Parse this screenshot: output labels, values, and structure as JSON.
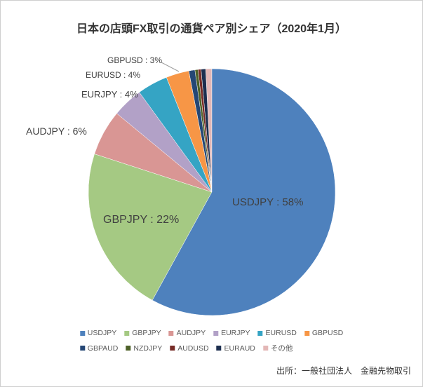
{
  "title": "日本の店頭FX取引の通貨ペア別シェア（2020年1月）",
  "source": "出所：一般社団法人　金融先物取引",
  "chart_data": {
    "type": "pie",
    "title": "日本の店頭FX取引の通貨ペア別シェア（2020年1月）",
    "start_angle_deg": 0,
    "direction": "clockwise",
    "legend_position": "bottom",
    "slices": [
      {
        "label": "USDJPY",
        "value": 58,
        "color": "#4E81BD",
        "data_label": "USDJPY : 58%",
        "label_pos": "inside"
      },
      {
        "label": "GBPJPY",
        "value": 22,
        "color": "#A5C983",
        "data_label": "GBPJPY : 22%",
        "label_pos": "inside"
      },
      {
        "label": "AUDJPY",
        "value": 6,
        "color": "#D99694",
        "data_label": "AUDJPY : 6%",
        "label_pos": "outside"
      },
      {
        "label": "EURJPY",
        "value": 4,
        "color": "#B2A1C7",
        "data_label": "EURJPY : 4%",
        "label_pos": "outside"
      },
      {
        "label": "EURUSD",
        "value": 4,
        "color": "#35A4C4",
        "data_label": "EURUSD : 4%",
        "label_pos": "outside"
      },
      {
        "label": "GBPUSD",
        "value": 3,
        "color": "#F79646",
        "data_label": "GBPUSD : 3%",
        "label_pos": "outside-leader"
      },
      {
        "label": "GBPAUD",
        "value": 0.8,
        "color": "#254775",
        "data_label": "",
        "label_pos": "none"
      },
      {
        "label": "NZDJPY",
        "value": 0.4,
        "color": "#4E6128",
        "data_label": "",
        "label_pos": "none"
      },
      {
        "label": "AUDUSD",
        "value": 0.4,
        "color": "#772C27",
        "data_label": "",
        "label_pos": "none"
      },
      {
        "label": "EURAUD",
        "value": 0.6,
        "color": "#1C2E4F",
        "data_label": "",
        "label_pos": "none"
      },
      {
        "label": "その他",
        "value": 0.8,
        "color": "#E3B7B6",
        "data_label": "",
        "label_pos": "none"
      }
    ],
    "legend_rows": [
      [
        "USDJPY",
        "GBPJPY",
        "AUDJPY",
        "EURJPY",
        "EURUSD",
        "GBPUSD"
      ],
      [
        "GBPAUD",
        "NZDJPY",
        "AUDUSD",
        "EURAUD",
        "その他"
      ]
    ]
  }
}
